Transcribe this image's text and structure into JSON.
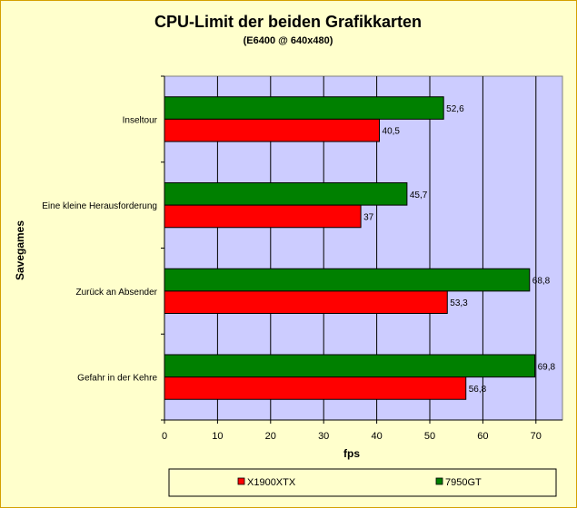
{
  "chart_data": {
    "type": "bar",
    "orientation": "horizontal",
    "title": "CPU-Limit der beiden Grafikkarten",
    "subtitle": "(E6400 @ 640x480)",
    "xlabel": "fps",
    "ylabel": "Savegames",
    "categories": [
      "Inseltour",
      "Eine kleine Herausforderung",
      "Zurück an Absender",
      "Gefahr in der Kehre"
    ],
    "series": [
      {
        "name": "X1900XTX",
        "color": "#ff0000",
        "values": [
          40.5,
          37,
          53.3,
          56.8
        ],
        "labels": [
          "40,5",
          "37",
          "53,3",
          "56,8"
        ]
      },
      {
        "name": "7950GT",
        "color": "#008000",
        "values": [
          52.6,
          45.7,
          68.8,
          69.8
        ],
        "labels": [
          "52,6",
          "45,7",
          "68,8",
          "69,8"
        ]
      }
    ],
    "xlim": [
      0,
      75
    ],
    "xticks": [
      0,
      10,
      20,
      30,
      40,
      50,
      60,
      70
    ],
    "grid": true,
    "plot_background": "#ccccff",
    "legend_position": "bottom"
  }
}
